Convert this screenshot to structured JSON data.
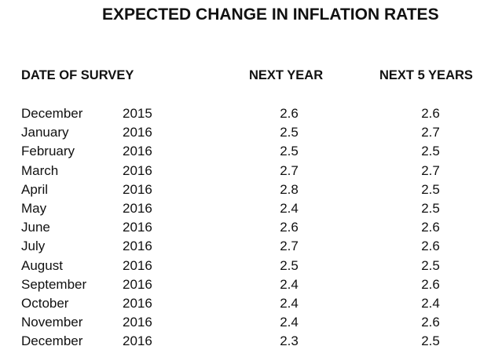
{
  "title": "EXPECTED CHANGE IN INFLATION RATES",
  "headers": {
    "date": "DATE OF SURVEY",
    "next_year": "NEXT YEAR",
    "next_5_years": "NEXT 5 YEARS"
  },
  "rows": [
    {
      "month": "December",
      "year": "2015",
      "next_year": "2.6",
      "next_5_years": "2.6"
    },
    {
      "month": "January",
      "year": "2016",
      "next_year": "2.5",
      "next_5_years": "2.7"
    },
    {
      "month": "February",
      "year": "2016",
      "next_year": "2.5",
      "next_5_years": "2.5"
    },
    {
      "month": "March",
      "year": "2016",
      "next_year": "2.7",
      "next_5_years": "2.7"
    },
    {
      "month": "April",
      "year": "2016",
      "next_year": "2.8",
      "next_5_years": "2.5"
    },
    {
      "month": "May",
      "year": "2016",
      "next_year": "2.4",
      "next_5_years": "2.5"
    },
    {
      "month": "June",
      "year": "2016",
      "next_year": "2.6",
      "next_5_years": "2.6"
    },
    {
      "month": "July",
      "year": "2016",
      "next_year": "2.7",
      "next_5_years": "2.6"
    },
    {
      "month": "August",
      "year": "2016",
      "next_year": "2.5",
      "next_5_years": "2.5"
    },
    {
      "month": "September",
      "year": "2016",
      "next_year": "2.4",
      "next_5_years": "2.6"
    },
    {
      "month": "October",
      "year": "2016",
      "next_year": "2.4",
      "next_5_years": "2.4"
    },
    {
      "month": "November",
      "year": "2016",
      "next_year": "2.4",
      "next_5_years": "2.6"
    },
    {
      "month": "December",
      "year": "2016",
      "next_year": "2.3",
      "next_5_years": "2.5"
    }
  ]
}
